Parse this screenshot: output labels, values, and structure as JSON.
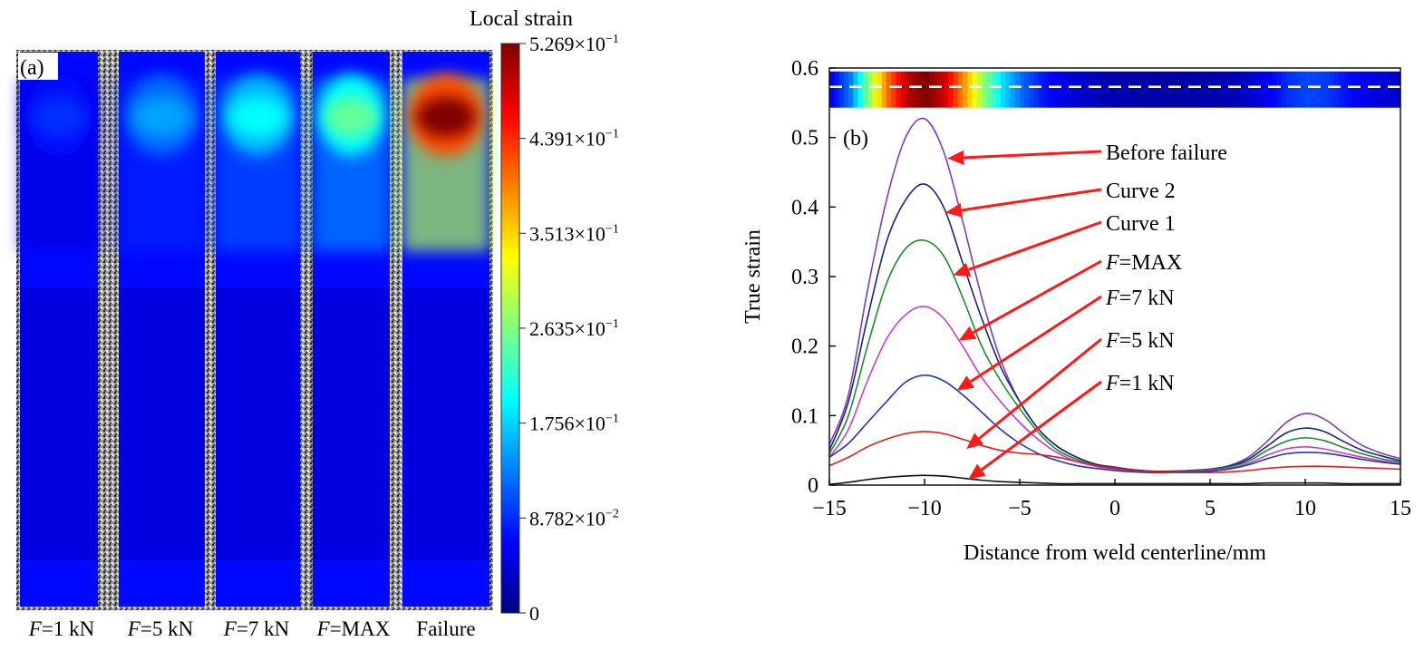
{
  "panel_a": {
    "label": "(a)",
    "colorbar_title": "Local strain",
    "colorbar_ticks": [
      {
        "mantissa": "5.269",
        "exp": "−1",
        "value": 0.5269
      },
      {
        "mantissa": "4.391",
        "exp": "−1",
        "value": 0.4391
      },
      {
        "mantissa": "3.513",
        "exp": "−1",
        "value": 0.3513
      },
      {
        "mantissa": "2.635",
        "exp": "−1",
        "value": 0.2635
      },
      {
        "mantissa": "1.756",
        "exp": "−1",
        "value": 0.1756
      },
      {
        "mantissa": "8.782",
        "exp": "−2",
        "value": 0.08782
      },
      {
        "mantissa": "0",
        "exp": "",
        "value": 0
      }
    ],
    "colormap": [
      "#00007f",
      "#0000ff",
      "#007fff",
      "#00ffff",
      "#7fff7f",
      "#ffff00",
      "#ff7f00",
      "#ff0000",
      "#7f0000"
    ],
    "strips": [
      {
        "f": "F",
        "rest": "=1 kN",
        "peak": 0.09
      },
      {
        "f": "F",
        "rest": "=5 kN",
        "peak": 0.15
      },
      {
        "f": "F",
        "rest": "=7 kN",
        "peak": 0.2
      },
      {
        "f": "F",
        "rest": "=MAX",
        "peak": 0.25
      },
      {
        "f": "",
        "rest": "Failure",
        "peak": 0.527
      }
    ]
  },
  "chart_data": {
    "type": "line",
    "panel_label": "(b)",
    "xlabel": "Distance from weld centerline/mm",
    "ylabel": "True strain",
    "xlim": [
      -15,
      15
    ],
    "ylim": [
      0,
      0.6
    ],
    "xticks": [
      -15,
      -10,
      -5,
      0,
      5,
      10,
      15
    ],
    "yticks": [
      0,
      0.1,
      0.2,
      0.3,
      0.4,
      0.5,
      0.6
    ],
    "x": [
      -15,
      -14,
      -13,
      -12,
      -11,
      -10,
      -9,
      -8,
      -7,
      -6,
      -5,
      -4,
      -3,
      -2,
      -1,
      0,
      1,
      2,
      3,
      4,
      5,
      6,
      7,
      8,
      9,
      10,
      11,
      12,
      13,
      14,
      15
    ],
    "series": [
      {
        "color": "#7b3fb5",
        "values": [
          0.058,
          0.13,
          0.28,
          0.41,
          0.5,
          0.527,
          0.48,
          0.38,
          0.27,
          0.18,
          0.12,
          0.08,
          0.055,
          0.04,
          0.03,
          0.026,
          0.022,
          0.02,
          0.02,
          0.021,
          0.023,
          0.028,
          0.04,
          0.063,
          0.09,
          0.103,
          0.095,
          0.075,
          0.057,
          0.046,
          0.038
        ]
      },
      {
        "color": "#1a237e",
        "values": [
          0.05,
          0.12,
          0.24,
          0.35,
          0.41,
          0.433,
          0.4,
          0.32,
          0.24,
          0.17,
          0.12,
          0.08,
          0.055,
          0.04,
          0.03,
          0.025,
          0.022,
          0.02,
          0.02,
          0.021,
          0.023,
          0.027,
          0.037,
          0.056,
          0.075,
          0.082,
          0.077,
          0.063,
          0.05,
          0.042,
          0.035
        ]
      },
      {
        "color": "#1f8a2a",
        "values": [
          0.045,
          0.1,
          0.2,
          0.29,
          0.34,
          0.352,
          0.33,
          0.27,
          0.2,
          0.15,
          0.11,
          0.075,
          0.05,
          0.037,
          0.028,
          0.024,
          0.021,
          0.019,
          0.019,
          0.02,
          0.022,
          0.026,
          0.034,
          0.05,
          0.063,
          0.068,
          0.064,
          0.054,
          0.045,
          0.038,
          0.033
        ]
      },
      {
        "color": "#c93ec9",
        "values": [
          0.04,
          0.08,
          0.15,
          0.21,
          0.245,
          0.257,
          0.24,
          0.2,
          0.155,
          0.12,
          0.09,
          0.065,
          0.046,
          0.034,
          0.027,
          0.023,
          0.02,
          0.018,
          0.018,
          0.019,
          0.021,
          0.024,
          0.031,
          0.043,
          0.052,
          0.055,
          0.052,
          0.046,
          0.04,
          0.035,
          0.031
        ]
      },
      {
        "color": "#2336b3",
        "values": [
          0.04,
          0.06,
          0.09,
          0.12,
          0.148,
          0.158,
          0.15,
          0.13,
          0.105,
          0.08,
          0.06,
          0.045,
          0.035,
          0.028,
          0.024,
          0.021,
          0.019,
          0.018,
          0.018,
          0.019,
          0.02,
          0.023,
          0.029,
          0.038,
          0.045,
          0.047,
          0.046,
          0.042,
          0.037,
          0.033,
          0.03
        ]
      },
      {
        "color": "#e02020",
        "values": [
          0.028,
          0.04,
          0.055,
          0.066,
          0.074,
          0.077,
          0.074,
          0.066,
          0.057,
          0.05,
          0.046,
          0.044,
          0.04,
          0.034,
          0.028,
          0.024,
          0.021,
          0.019,
          0.018,
          0.018,
          0.018,
          0.019,
          0.021,
          0.024,
          0.026,
          0.027,
          0.027,
          0.026,
          0.025,
          0.024,
          0.023
        ]
      },
      {
        "color": "#111111",
        "values": [
          0.001,
          0.004,
          0.008,
          0.011,
          0.013,
          0.014,
          0.013,
          0.01,
          0.007,
          0.005,
          0.004,
          0.003,
          0.002,
          0.002,
          0.002,
          0.002,
          0.002,
          0.002,
          0.002,
          0.002,
          0.002,
          0.002,
          0.002,
          0.003,
          0.003,
          0.003,
          0.003,
          0.002,
          0.002,
          0.002,
          0.002
        ]
      }
    ],
    "annotations": [
      {
        "f": "",
        "rest": "Before failure",
        "series_index": 0
      },
      {
        "f": "",
        "rest": "Curve 2",
        "series_index": 1
      },
      {
        "f": "",
        "rest": "Curve 1",
        "series_index": 2
      },
      {
        "f": "F",
        "rest": "=MAX",
        "series_index": 3
      },
      {
        "f": "F",
        "rest": "=7 kN",
        "series_index": 4
      },
      {
        "f": "F",
        "rest": "=5 kN",
        "series_index": 5
      },
      {
        "f": "F",
        "rest": "=1 kN",
        "series_index": 6
      }
    ],
    "arrow_color": "#ff1a1a",
    "strain_strip_peak": 0.527
  }
}
